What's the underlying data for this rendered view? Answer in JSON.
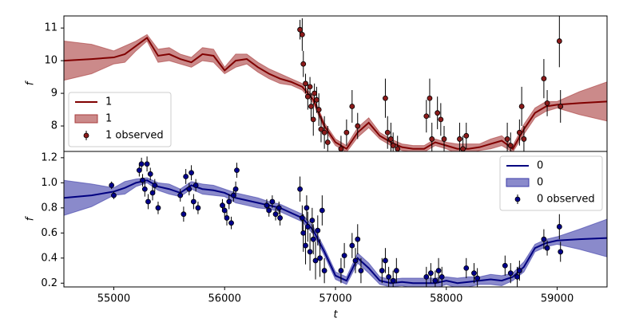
{
  "chart_data": [
    {
      "type": "line",
      "ylabel": "f",
      "legend": "lower left",
      "ylim": [
        7.22,
        11.37
      ],
      "yticks": [
        8,
        9,
        10,
        11
      ],
      "xlim": [
        54550,
        59450
      ],
      "x": [
        54550,
        54800,
        55000,
        55100,
        55200,
        55300,
        55400,
        55500,
        55600,
        55700,
        55800,
        55900,
        56000,
        56100,
        56200,
        56300,
        56400,
        56500,
        56600,
        56700,
        56800,
        56900,
        57000,
        57100,
        57200,
        57300,
        57400,
        57500,
        57600,
        57700,
        57800,
        57900,
        58000,
        58100,
        58200,
        58300,
        58400,
        58500,
        58600,
        58700,
        58800,
        58900,
        59000,
        59200,
        59450
      ],
      "series": [
        {
          "name": "1",
          "kind": "line",
          "color": "#800000",
          "values": [
            10.0,
            10.05,
            10.1,
            10.2,
            10.45,
            10.7,
            10.15,
            10.2,
            10.05,
            9.95,
            10.2,
            10.15,
            9.7,
            10.0,
            10.05,
            9.8,
            9.6,
            9.45,
            9.35,
            9.2,
            8.8,
            8.0,
            7.5,
            7.3,
            7.8,
            8.1,
            7.7,
            7.5,
            7.35,
            7.3,
            7.3,
            7.5,
            7.4,
            7.3,
            7.3,
            7.35,
            7.45,
            7.55,
            7.3,
            7.9,
            8.4,
            8.6,
            8.65,
            8.7,
            8.75
          ]
        },
        {
          "name": "1",
          "kind": "band",
          "color": "#a83c3c",
          "lower": [
            9.4,
            9.6,
            9.9,
            9.95,
            10.3,
            10.6,
            9.95,
            10.0,
            9.9,
            9.8,
            10.0,
            9.95,
            9.6,
            9.8,
            9.9,
            9.65,
            9.45,
            9.3,
            9.25,
            9.1,
            8.7,
            7.9,
            7.4,
            7.2,
            7.65,
            7.95,
            7.6,
            7.4,
            7.25,
            7.2,
            7.2,
            7.4,
            7.3,
            7.15,
            7.15,
            7.25,
            7.3,
            7.4,
            7.2,
            7.75,
            8.25,
            8.45,
            8.55,
            8.35,
            8.15
          ],
          "upper": [
            10.6,
            10.5,
            10.3,
            10.45,
            10.6,
            10.8,
            10.35,
            10.4,
            10.2,
            10.1,
            10.4,
            10.35,
            9.8,
            10.2,
            10.2,
            9.95,
            9.75,
            9.6,
            9.45,
            9.3,
            8.9,
            8.1,
            7.6,
            7.4,
            7.95,
            8.25,
            7.8,
            7.6,
            7.45,
            7.4,
            7.4,
            7.6,
            7.5,
            7.45,
            7.45,
            7.45,
            7.6,
            7.7,
            7.4,
            8.05,
            8.55,
            8.75,
            8.75,
            9.05,
            9.35
          ]
        },
        {
          "name": "1 observed",
          "kind": "errorbar",
          "color": "#8b1a1a",
          "x": [
            56680,
            56700,
            56710,
            56730,
            56750,
            56770,
            56780,
            56800,
            56810,
            56830,
            56850,
            56870,
            56900,
            56930,
            57050,
            57100,
            57150,
            57200,
            57450,
            57470,
            57500,
            57520,
            57560,
            57820,
            57850,
            57870,
            57920,
            57950,
            57980,
            58120,
            58150,
            58180,
            58550,
            58580,
            58660,
            58680,
            58700,
            58880,
            58910,
            59020,
            59030
          ],
          "values": [
            10.95,
            10.8,
            9.9,
            9.3,
            8.9,
            9.2,
            8.6,
            8.2,
            9.0,
            8.8,
            8.5,
            7.9,
            7.8,
            7.5,
            7.3,
            7.8,
            8.6,
            8.0,
            8.85,
            7.8,
            7.6,
            7.4,
            7.3,
            8.3,
            8.85,
            7.6,
            8.4,
            8.2,
            7.6,
            7.6,
            7.3,
            7.7,
            7.6,
            7.4,
            7.8,
            8.6,
            7.6,
            9.45,
            8.7,
            10.6,
            8.6
          ],
          "errors": [
            0.3,
            0.5,
            0.4,
            0.3,
            0.4,
            0.3,
            0.4,
            0.5,
            0.3,
            0.4,
            0.5,
            0.4,
            0.5,
            0.5,
            0.4,
            0.4,
            0.5,
            0.4,
            0.6,
            0.5,
            0.5,
            0.4,
            0.4,
            0.5,
            0.6,
            0.5,
            0.5,
            0.5,
            0.4,
            0.5,
            0.4,
            0.4,
            0.5,
            0.4,
            0.4,
            0.6,
            0.4,
            0.6,
            0.4,
            0.8,
            0.5
          ]
        }
      ]
    },
    {
      "type": "line",
      "ylabel": "f",
      "xlabel": "t",
      "legend": "upper right",
      "ylim": [
        0.17,
        1.25
      ],
      "yticks": [
        {
          "value": 0.2,
          "label": "0.2"
        },
        {
          "value": 0.4,
          "label": "0.4"
        },
        {
          "value": 0.6,
          "label": "0.6"
        },
        {
          "value": 0.8,
          "label": "0.8"
        },
        {
          "value": 1.0,
          "label": "1.0"
        },
        {
          "value": 1.2,
          "label": "1.2"
        }
      ],
      "xlim": [
        54550,
        59450
      ],
      "xticks": [
        55000,
        56000,
        57000,
        58000,
        59000
      ],
      "x": [
        54550,
        54800,
        55000,
        55100,
        55200,
        55300,
        55400,
        55500,
        55600,
        55700,
        55800,
        55900,
        56000,
        56100,
        56200,
        56300,
        56400,
        56500,
        56600,
        56700,
        56800,
        56900,
        57000,
        57100,
        57200,
        57300,
        57400,
        57500,
        57600,
        57700,
        57800,
        57900,
        58000,
        58100,
        58200,
        58300,
        58400,
        58500,
        58600,
        58700,
        58800,
        58900,
        59000,
        59200,
        59450
      ],
      "series": [
        {
          "name": "0",
          "kind": "line",
          "color": "#000080",
          "values": [
            0.88,
            0.9,
            0.93,
            0.96,
            1.0,
            1.02,
            0.97,
            0.95,
            0.92,
            0.98,
            0.95,
            0.94,
            0.92,
            0.88,
            0.86,
            0.84,
            0.82,
            0.8,
            0.76,
            0.72,
            0.62,
            0.45,
            0.26,
            0.22,
            0.4,
            0.32,
            0.22,
            0.2,
            0.21,
            0.2,
            0.2,
            0.2,
            0.22,
            0.2,
            0.21,
            0.22,
            0.23,
            0.22,
            0.25,
            0.33,
            0.48,
            0.52,
            0.54,
            0.55,
            0.56
          ]
        },
        {
          "name": "0",
          "kind": "band",
          "color": "#3c3ca8",
          "lower": [
            0.74,
            0.81,
            0.9,
            0.91,
            0.97,
            1.0,
            0.94,
            0.91,
            0.89,
            0.95,
            0.91,
            0.9,
            0.89,
            0.84,
            0.82,
            0.8,
            0.79,
            0.77,
            0.73,
            0.69,
            0.59,
            0.42,
            0.23,
            0.19,
            0.36,
            0.28,
            0.19,
            0.17,
            0.18,
            0.16,
            0.16,
            0.16,
            0.19,
            0.16,
            0.17,
            0.19,
            0.19,
            0.18,
            0.22,
            0.29,
            0.45,
            0.49,
            0.51,
            0.47,
            0.41
          ],
          "upper": [
            1.02,
            0.99,
            0.96,
            1.01,
            1.03,
            1.04,
            1.0,
            0.99,
            0.95,
            1.01,
            0.99,
            0.98,
            0.95,
            0.92,
            0.9,
            0.88,
            0.85,
            0.83,
            0.79,
            0.75,
            0.65,
            0.48,
            0.29,
            0.25,
            0.44,
            0.36,
            0.25,
            0.23,
            0.24,
            0.24,
            0.24,
            0.24,
            0.25,
            0.24,
            0.25,
            0.25,
            0.27,
            0.26,
            0.28,
            0.37,
            0.51,
            0.55,
            0.57,
            0.63,
            0.71
          ]
        },
        {
          "name": "0 observed",
          "kind": "errorbar",
          "color": "#00008b",
          "x": [
            54980,
            55000,
            55230,
            55250,
            55260,
            55280,
            55300,
            55310,
            55330,
            55350,
            55370,
            55400,
            55600,
            55630,
            55650,
            55680,
            55700,
            55720,
            55740,
            55760,
            55980,
            56000,
            56020,
            56040,
            56060,
            56080,
            56100,
            56110,
            56380,
            56400,
            56430,
            56460,
            56490,
            56500,
            56680,
            56700,
            56710,
            56730,
            56740,
            56750,
            56770,
            56790,
            56800,
            56820,
            56840,
            56860,
            56880,
            56900,
            57050,
            57080,
            57150,
            57180,
            57200,
            57230,
            57420,
            57450,
            57480,
            57520,
            57550,
            57820,
            57860,
            57900,
            57930,
            57960,
            58180,
            58250,
            58280,
            58530,
            58580,
            58640,
            58660,
            58880,
            58910,
            59020,
            59030
          ],
          "values": [
            0.98,
            0.9,
            1.1,
            1.15,
            1.02,
            0.95,
            1.15,
            0.85,
            1.07,
            0.92,
            0.98,
            0.8,
            0.9,
            0.75,
            1.05,
            0.95,
            1.08,
            0.85,
            0.98,
            0.8,
            0.82,
            0.78,
            0.72,
            0.85,
            0.68,
            0.9,
            0.95,
            1.1,
            0.82,
            0.78,
            0.85,
            0.75,
            0.8,
            0.72,
            0.95,
            0.72,
            0.6,
            0.5,
            0.8,
            0.65,
            0.45,
            0.7,
            0.55,
            0.38,
            0.62,
            0.4,
            0.78,
            0.3,
            0.3,
            0.42,
            0.5,
            0.38,
            0.55,
            0.3,
            0.3,
            0.38,
            0.25,
            0.22,
            0.3,
            0.25,
            0.28,
            0.22,
            0.3,
            0.25,
            0.32,
            0.28,
            0.24,
            0.34,
            0.28,
            0.25,
            0.3,
            0.55,
            0.48,
            0.65,
            0.45
          ],
          "errors": [
            0.03,
            0.03,
            0.05,
            0.05,
            0.05,
            0.06,
            0.06,
            0.06,
            0.05,
            0.06,
            0.05,
            0.05,
            0.05,
            0.06,
            0.06,
            0.05,
            0.06,
            0.06,
            0.05,
            0.05,
            0.05,
            0.05,
            0.06,
            0.06,
            0.05,
            0.05,
            0.06,
            0.06,
            0.05,
            0.05,
            0.05,
            0.05,
            0.05,
            0.06,
            0.1,
            0.1,
            0.15,
            0.15,
            0.1,
            0.12,
            0.15,
            0.1,
            0.12,
            0.15,
            0.12,
            0.15,
            0.12,
            0.1,
            0.1,
            0.1,
            0.1,
            0.1,
            0.12,
            0.1,
            0.1,
            0.1,
            0.08,
            0.08,
            0.1,
            0.08,
            0.08,
            0.08,
            0.1,
            0.08,
            0.08,
            0.08,
            0.08,
            0.08,
            0.08,
            0.08,
            0.08,
            0.08,
            0.06,
            0.1,
            0.08
          ]
        }
      ]
    }
  ]
}
